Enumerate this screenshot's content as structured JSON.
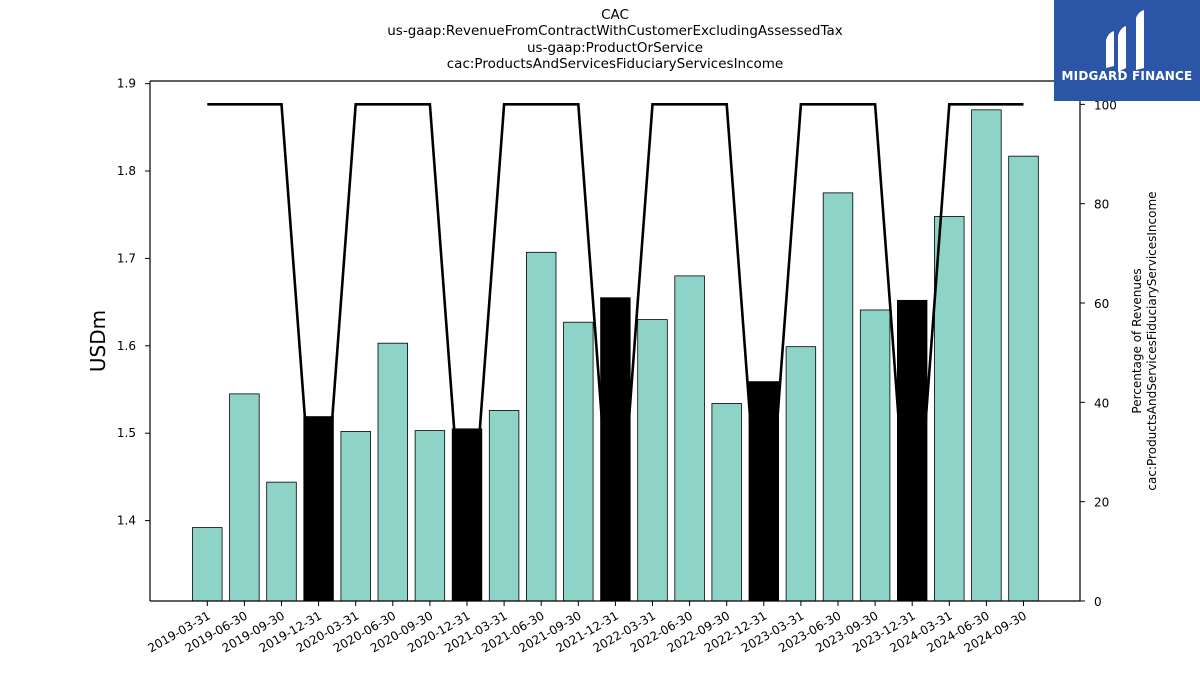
{
  "title_lines": [
    "CAC",
    "us-gaap:RevenueFromContractWithCustomerExcludingAssessedTax",
    "us-gaap:ProductOrService",
    "cac:ProductsAndServicesFiduciaryServicesIncome"
  ],
  "logo": {
    "text": "MIDGARD FINANCE",
    "background": "#2b56a8"
  },
  "chart_data": {
    "type": "bar",
    "title": "CAC us-gaap:RevenueFromContractWithCustomerExcludingAssessedTax us-gaap:ProductOrService cac:ProductsAndServicesFiduciaryServicesIncome",
    "categories": [
      "2019-03-31",
      "2019-06-30",
      "2019-09-30",
      "2019-12-31",
      "2020-03-31",
      "2020-06-30",
      "2020-09-30",
      "2020-12-31",
      "2021-03-31",
      "2021-06-30",
      "2021-09-30",
      "2021-12-31",
      "2022-03-31",
      "2022-06-30",
      "2022-09-30",
      "2022-12-31",
      "2023-03-31",
      "2023-06-30",
      "2023-09-30",
      "2023-12-31",
      "2024-03-31",
      "2024-06-30",
      "2024-09-30"
    ],
    "series": [
      {
        "values": [
          1.392,
          1.545,
          1.444,
          1.519,
          1.502,
          1.603,
          1.503,
          1.505,
          1.526,
          1.707,
          1.627,
          1.655,
          1.63,
          1.68,
          1.534,
          1.559,
          1.599,
          1.775,
          1.641,
          1.652,
          1.748,
          1.87,
          1.817
        ],
        "colors": [
          "#8dd3c7",
          "#8dd3c7",
          "#8dd3c7",
          "#000000",
          "#8dd3c7",
          "#8dd3c7",
          "#8dd3c7",
          "#000000",
          "#8dd3c7",
          "#8dd3c7",
          "#8dd3c7",
          "#000000",
          "#8dd3c7",
          "#8dd3c7",
          "#8dd3c7",
          "#000000",
          "#8dd3c7",
          "#8dd3c7",
          "#8dd3c7",
          "#000000",
          "#8dd3c7",
          "#8dd3c7",
          "#8dd3c7"
        ]
      },
      {
        "axis": "right",
        "type": "line",
        "values": [
          100,
          100,
          100,
          0,
          100,
          100,
          100,
          0,
          100,
          100,
          100,
          0,
          100,
          100,
          100,
          0,
          100,
          100,
          100,
          0,
          100,
          100,
          100
        ]
      }
    ],
    "ylabel": "USDm",
    "y2label_lines": [
      "Percentage of Revenues",
      "cac:ProductsAndServicesFiduciaryServicesIncome"
    ],
    "ylim": [
      1.308,
      1.903
    ],
    "yticks": [
      "1.4",
      "1.5",
      "1.6",
      "1.7",
      "1.8",
      "1.9"
    ],
    "y2lim": [
      0,
      104.7
    ],
    "y2ticks": [
      "0",
      "20",
      "40",
      "60",
      "80",
      "100"
    ],
    "colors": {
      "bar": "#8dd3c7",
      "highlight_bar": "#000000",
      "line": "#000000"
    },
    "grid": false
  }
}
